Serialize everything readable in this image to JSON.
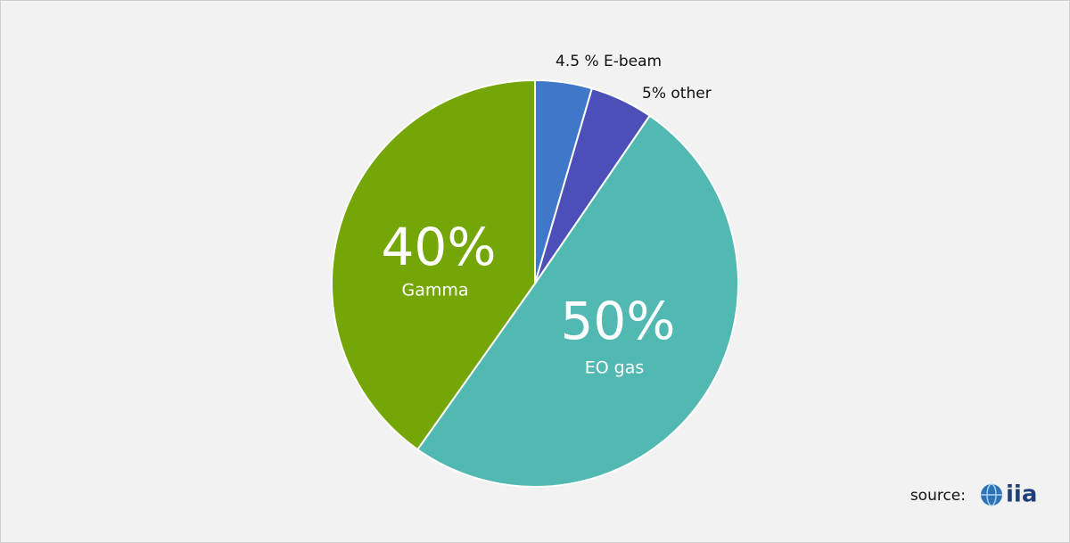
{
  "chart_data": {
    "type": "pie",
    "categories": [
      "E-beam",
      "other",
      "EO gas",
      "Gamma"
    ],
    "values": [
      4.5,
      5,
      50,
      40
    ],
    "value_labels": [
      "4.5 %",
      "5%",
      "50%",
      "40%"
    ],
    "colors": [
      "#3f78c8",
      "#4c4fb8",
      "#52b8b2",
      "#74a608"
    ],
    "start_angle": 90,
    "direction": "clockwise",
    "source_label": "source:",
    "source_name": "iia"
  }
}
